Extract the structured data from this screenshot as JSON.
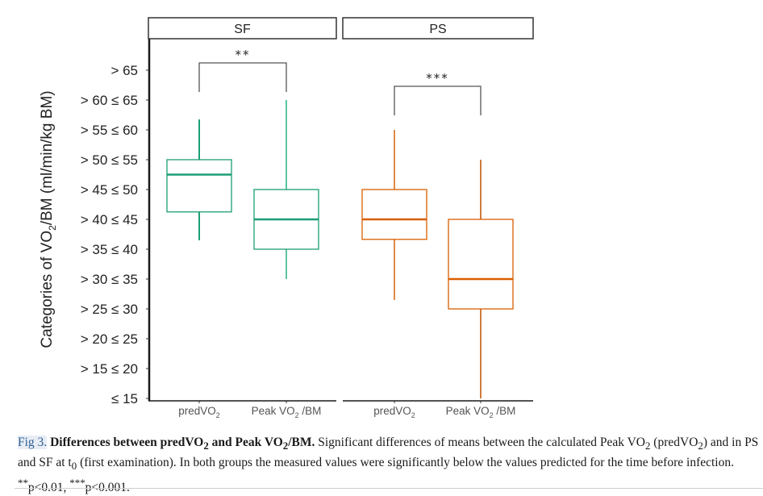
{
  "chart_data": {
    "type": "box",
    "ylabel": "Categories of VO2/BM (ml/min/kg BM)",
    "ylabel_parts": {
      "pre": "Categories of VO",
      "sub": "2",
      "post": "/BM (ml/min/kg BM)"
    },
    "y_categories": [
      "≤ 15",
      "> 15 ≤ 20",
      "> 20 ≤ 25",
      "> 25 ≤ 30",
      "> 30 ≤ 35",
      "> 35 ≤ 40",
      "> 40 ≤ 45",
      "> 45 ≤ 50",
      "> 50 ≤ 55",
      "> 55 ≤ 60",
      "> 60 ≤ 65",
      "> 65"
    ],
    "ylim": [
      0,
      11
    ],
    "x_categories": [
      {
        "pre": "predVO",
        "sub": "2",
        "post": ""
      },
      {
        "pre": "Peak VO",
        "sub": "2",
        "post": " /BM"
      }
    ],
    "panels": [
      {
        "name": "SF",
        "significance": "**",
        "boxes": [
          {
            "category": "predVO2",
            "whisker_low": 5.3,
            "q1": 6.25,
            "median": 7.5,
            "q3": 8,
            "whisker_high": 9.35,
            "color": "#1b9e77"
          },
          {
            "category": "Peak VO2 /BM",
            "whisker_low": 4,
            "q1": 5,
            "median": 6,
            "q3": 7,
            "whisker_high": 10,
            "color": "#1b9e77",
            "whisker_color": "#5cc4a2"
          }
        ]
      },
      {
        "name": "PS",
        "significance": "***",
        "boxes": [
          {
            "category": "predVO2",
            "whisker_low": 3.3,
            "q1": 5.33,
            "median": 6,
            "q3": 7,
            "whisker_high": 9,
            "color": "#d95f02",
            "whisker_color": "#e08a45"
          },
          {
            "category": "Peak VO2 /BM",
            "whisker_low": 0,
            "q1": 3,
            "median": 4,
            "q3": 6,
            "whisker_high": 8,
            "color": "#d95f02",
            "whisker_color": "#cf7a3c"
          }
        ]
      }
    ],
    "grid": false,
    "legend": "none"
  },
  "caption": {
    "label": "Fig 3.",
    "title_parts": [
      "Differences between predVO",
      "2",
      " and Peak VO",
      "2",
      "/BM."
    ],
    "text_parts": [
      " Significant differences of means between the calculated Peak VO",
      "2",
      " (predVO",
      "2",
      ") and in PS and SF at t",
      "0",
      " (first examination). In both groups the measured values were significantly below the values predicted for the time before infection. ",
      "**",
      "p<0.01, ",
      "***",
      "p<0.001."
    ]
  }
}
